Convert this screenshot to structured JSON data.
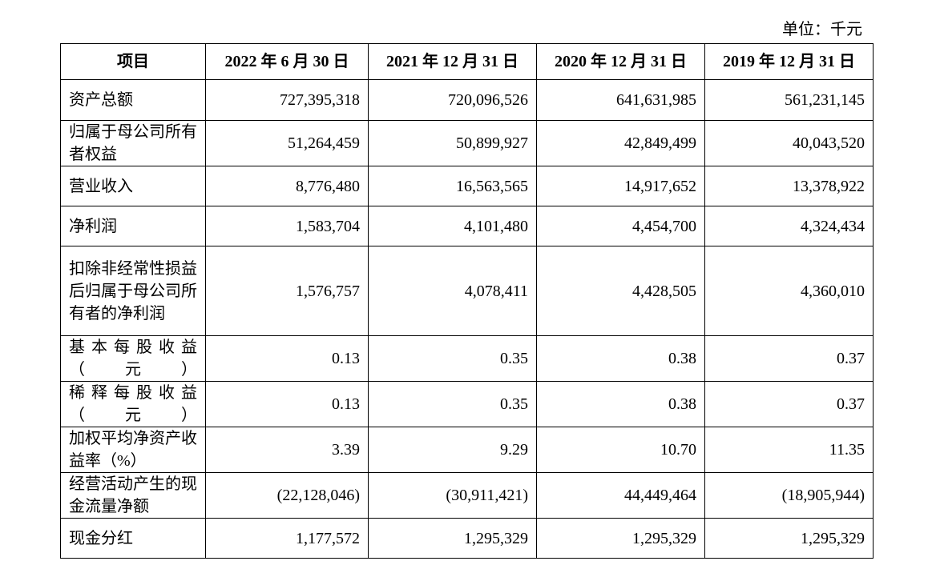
{
  "unit": "单位：千元",
  "headers": [
    "项目",
    "2022 年 6 月 30 日",
    "2021 年 12 月 31 日",
    "2020 年 12 月 31 日",
    "2019 年 12 月 31 日"
  ],
  "rows": [
    {
      "label": "资产总额",
      "values": [
        "727,395,318",
        "720,096,526",
        "641,631,985",
        "561,231,145"
      ]
    },
    {
      "label": "归属于母公司所有者权益",
      "values": [
        "51,264,459",
        "50,899,927",
        "42,849,499",
        "40,043,520"
      ]
    },
    {
      "label": "营业收入",
      "values": [
        "8,776,480",
        "16,563,565",
        "14,917,652",
        "13,378,922"
      ]
    },
    {
      "label": "净利润",
      "values": [
        "1,583,704",
        "4,101,480",
        "4,454,700",
        "4,324,434"
      ]
    },
    {
      "label": "扣除非经常性损益后归属于母公司所有者的净利润",
      "values": [
        "1,576,757",
        "4,078,411",
        "4,428,505",
        "4,360,010"
      ]
    },
    {
      "label": "基本每股收益（元）",
      "values": [
        "0.13",
        "0.35",
        "0.38",
        "0.37"
      ]
    },
    {
      "label": "稀释每股收益（元）",
      "values": [
        "0.13",
        "0.35",
        "0.38",
        "0.37"
      ]
    },
    {
      "label": "加权平均净资产收益率（%）",
      "values": [
        "3.39",
        "9.29",
        "10.70",
        "11.35"
      ]
    },
    {
      "label": "经营活动产生的现金流量净额",
      "values": [
        "(22,128,046)",
        "(30,911,421)",
        "44,449,464",
        "(18,905,944)"
      ]
    },
    {
      "label": "现金分红",
      "values": [
        "1,177,572",
        "1,295,329",
        "1,295,329",
        "1,295,329"
      ]
    }
  ]
}
